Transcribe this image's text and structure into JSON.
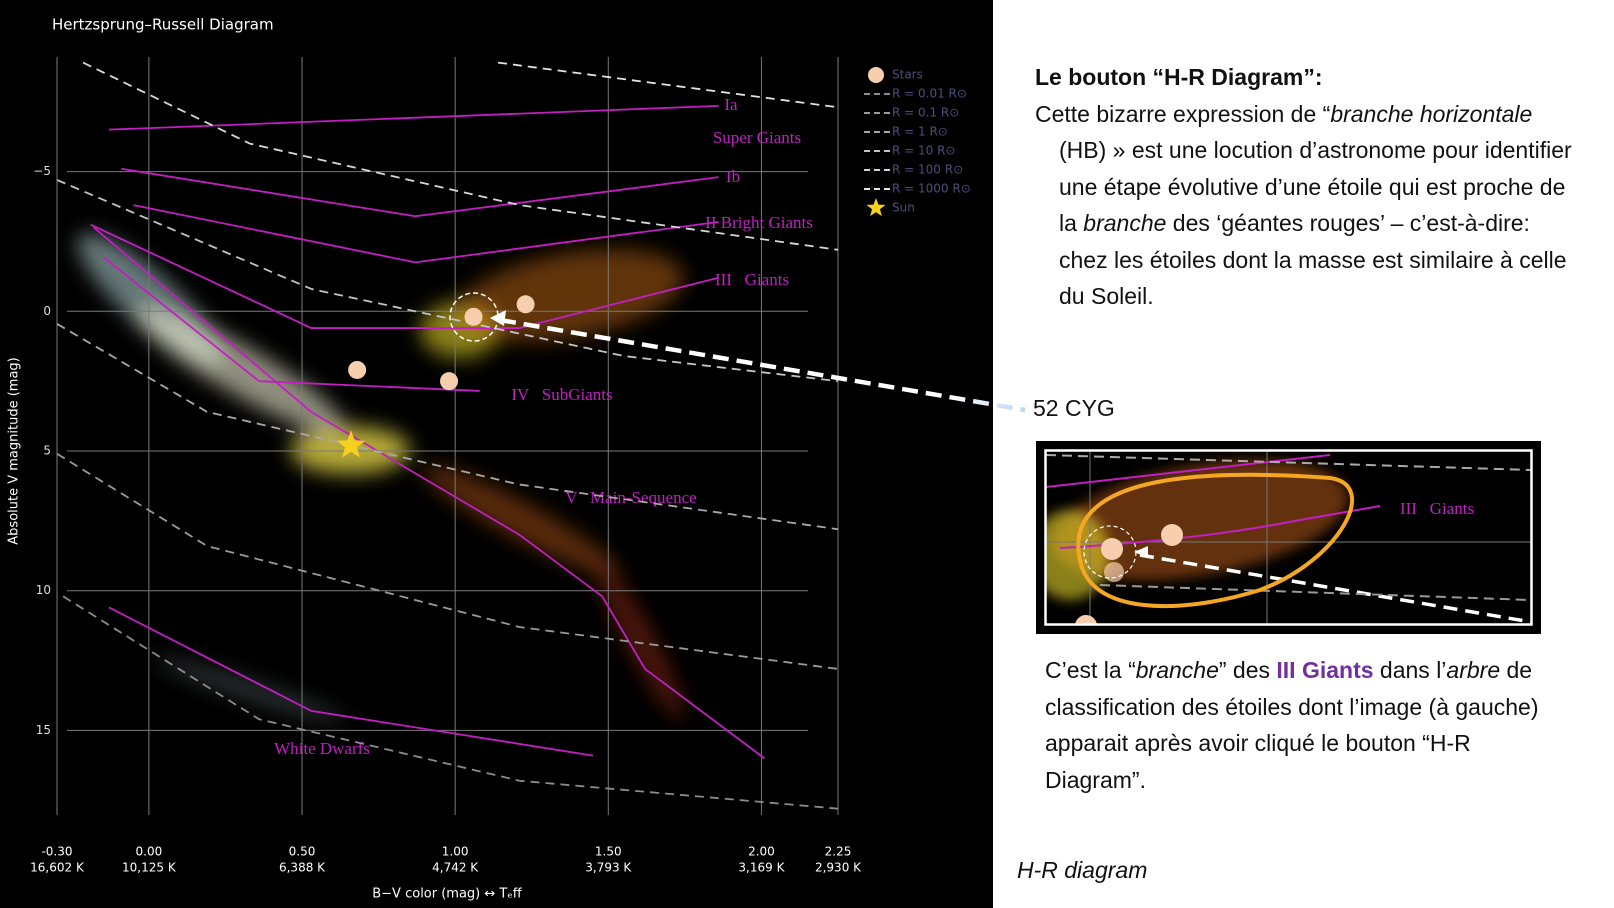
{
  "chart_data": {
    "type": "scatter",
    "title": "Hertzsprung–Russell Diagram",
    "x_label": "B−V color (mag) ↔ Tₑff",
    "y_label": "Absolute V magnitude (mag)",
    "xlim": [
      -0.3,
      2.25
    ],
    "xticks": [
      {
        "value": -0.3,
        "label": "-0.30"
      },
      {
        "value": 0,
        "label": "0.00"
      },
      {
        "value": 0.5,
        "label": "0.50"
      },
      {
        "value": 1,
        "label": "1.00"
      },
      {
        "value": 1.5,
        "label": "1.50"
      },
      {
        "value": 2,
        "label": "2.00"
      },
      {
        "value": 2.25,
        "label": "2.25"
      }
    ],
    "x_temperature_labels": [
      "16,602 K",
      "10,125 K",
      "6,388 K",
      "4,742 K",
      "3,793 K",
      "3,169 K",
      "2,930 K"
    ],
    "ylim": [
      -9.1,
      19.1
    ],
    "y_reversed": true,
    "yticks": [
      {
        "value": -5,
        "label": "−5"
      },
      0,
      5,
      10,
      15
    ],
    "grid": true,
    "legend_position": "upper right",
    "series": [
      {
        "name": "Stars",
        "kind": "points",
        "color": "#f7cfae",
        "x": [
          0.68,
          0.98,
          1.06,
          1.23
        ],
        "y": [
          2.1,
          2.5,
          0.2,
          -0.25
        ]
      },
      {
        "name": "R = 0.01 R⊙",
        "kind": "dashed",
        "color": "#8c8c8c",
        "x": [
          -0.28,
          0.36,
          1.21,
          2.25
        ],
        "y": [
          10.2,
          14.6,
          16.8,
          17.8
        ]
      },
      {
        "name": "R = 0.1 R⊙",
        "kind": "dashed",
        "color": "#9a9a9a",
        "x": [
          -0.3,
          0.19,
          1.21,
          2.25
        ],
        "y": [
          5.1,
          8.4,
          11.3,
          12.8
        ]
      },
      {
        "name": "R = 1 R⊙",
        "kind": "dashed",
        "color": "#a8a8a8",
        "x": [
          -0.3,
          0.19,
          1.21,
          2.25
        ],
        "y": [
          0.45,
          3.6,
          6.2,
          7.8
        ]
      },
      {
        "name": "R = 10 R⊙",
        "kind": "dashed",
        "color": "#c4c4c4",
        "x": [
          -0.3,
          0.53,
          1.55,
          2.25
        ],
        "y": [
          -4.7,
          -0.8,
          1.6,
          2.5
        ]
      },
      {
        "name": "R = 100 R⊙",
        "kind": "dashed",
        "color": "#d8d8d8",
        "x": [
          -0.215,
          0.33,
          1.21,
          2.25
        ],
        "y": [
          -8.9,
          -6.0,
          -3.8,
          -2.2
        ]
      },
      {
        "name": "R = 1000 R⊙",
        "kind": "dashed",
        "color": "#e4e4e4",
        "x": [
          1.14,
          2.25
        ],
        "y": [
          -8.9,
          -7.3
        ]
      },
      {
        "name": "Sun",
        "kind": "star",
        "color": "#f5d020",
        "x": [
          0.66
        ],
        "y": [
          4.8
        ]
      }
    ],
    "class_color": "#c21fc2",
    "luminosity_classes": [
      {
        "label": "Ia",
        "x": [
          -0.13,
          1.86
        ],
        "y": [
          -6.5,
          -7.35
        ]
      },
      {
        "label": "Ib",
        "x": [
          -0.09,
          0.87,
          1.86
        ],
        "y": [
          -5.1,
          -3.4,
          -4.8
        ]
      },
      {
        "label": "II Bright Giants",
        "x": [
          -0.05,
          0.87,
          1.86
        ],
        "y": [
          -3.8,
          -1.75,
          -3.2
        ]
      },
      {
        "label": "III   Giants",
        "x": [
          -0.19,
          0.53,
          1.21,
          1.86
        ],
        "y": [
          -3.1,
          0.6,
          0.6,
          -1.2
        ]
      },
      {
        "label": "IV   SubGiants",
        "x": [
          -0.15,
          0.36,
          1.08
        ],
        "y": [
          -1.95,
          2.5,
          2.85
        ]
      },
      {
        "label": "V   Main-Sequence",
        "x": [
          -0.18,
          0.53,
          1.21,
          1.48,
          1.62,
          2.01
        ],
        "y": [
          -3.0,
          3.6,
          8.0,
          10.2,
          12.8,
          16.0
        ]
      },
      {
        "label": "White Dwarfs",
        "x": [
          -0.13,
          0.53,
          1.45
        ],
        "y": [
          10.6,
          14.3,
          15.9
        ]
      }
    ],
    "annotation": "Super Giants"
  },
  "text_panel": {
    "heading": "Le bouton “H-R Diagram”:",
    "paragraph_1": [
      "Cette bizarre expression de “",
      "branche horizontale",
      " (HB) » est une locution d’astronome pour identifier une étape évolutive d’une étoile qui est proche de la ",
      "branche",
      " des ‘géantes rouges’ – c’est-à-dire: chez les étoiles dont la masse est similaire à celle du Soleil."
    ],
    "callout_label": "52 CYG",
    "inset_label": "III   Giants",
    "paragraph_2": [
      "C’est la “",
      "branche",
      "” des ",
      "III Giants",
      " dans l’",
      "arbre",
      " de classification des étoiles dont l’image (à gauche) apparait après avoir cliqué le bouton “H-R Diagram”."
    ],
    "caption": "H-R diagram"
  }
}
